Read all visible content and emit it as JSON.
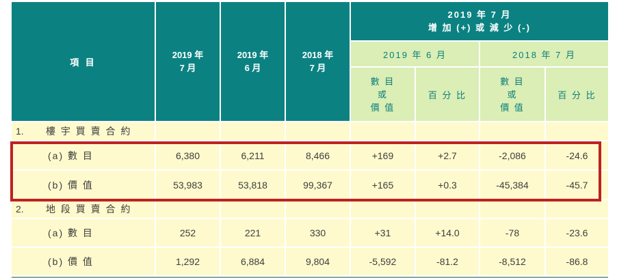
{
  "table": {
    "header": {
      "item": "項 目",
      "periods": [
        {
          "line1": "2019 年",
          "line2": "7 月"
        },
        {
          "line1": "2019 年",
          "line2": "6 月"
        },
        {
          "line1": "2018 年",
          "line2": "7 月"
        }
      ],
      "change": {
        "line1": "2019 年 7 月",
        "line2": "增 加 (+) 或 減 少 (-)"
      },
      "compare": [
        "2019 年 6 月",
        "2018 年 7 月"
      ],
      "measure": {
        "line1": "數 目",
        "line2": "或",
        "line3": "價 值"
      },
      "percent": "百 分 比"
    },
    "sections": [
      {
        "no": "1.",
        "title": "樓 宇 買 賣 合 約",
        "rows": [
          {
            "label": "(a) 數 目",
            "values": [
              "6,380",
              "6,211",
              "8,466",
              "+169",
              "+2.7",
              "-2,086",
              "-24.6"
            ]
          },
          {
            "label": "(b) 價 值",
            "values": [
              "53,983",
              "53,818",
              "99,367",
              "+165",
              "+0.3",
              "-45,384",
              "-45.7"
            ]
          }
        ]
      },
      {
        "no": "2.",
        "title": "地 段 買 賣 合 約",
        "rows": [
          {
            "label": "(a) 數 目",
            "values": [
              "252",
              "221",
              "330",
              "+31",
              "+14.0",
              "-78",
              "-23.6"
            ]
          },
          {
            "label": "(b) 價 值",
            "values": [
              "1,292",
              "6,884",
              "9,804",
              "-5,592",
              "-81.2",
              "-8,512",
              "-86.8"
            ]
          }
        ]
      }
    ]
  },
  "highlight": {
    "target": "section-1-data-rows",
    "color": "#be2121"
  },
  "colors": {
    "header_teal": "#0b8281",
    "subheader_green": "#daeeb5",
    "body_yellow": "#fffacd",
    "highlight_red": "#be2121"
  }
}
